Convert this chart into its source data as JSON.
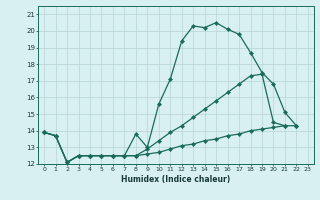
{
  "xlabel": "Humidex (Indice chaleur)",
  "x_values": [
    0,
    1,
    2,
    3,
    4,
    5,
    6,
    7,
    8,
    9,
    10,
    11,
    12,
    13,
    14,
    15,
    16,
    17,
    18,
    19,
    20,
    21,
    22,
    23
  ],
  "line1": [
    13.9,
    13.7,
    12.1,
    12.5,
    12.5,
    12.5,
    12.5,
    12.5,
    13.8,
    13.0,
    15.6,
    17.1,
    19.4,
    20.3,
    20.2,
    20.5,
    20.1,
    19.8,
    18.7,
    17.5,
    16.8,
    15.1,
    14.3,
    null
  ],
  "line2": [
    13.9,
    13.7,
    12.1,
    12.5,
    12.5,
    12.5,
    12.5,
    12.5,
    12.5,
    12.9,
    13.4,
    13.9,
    14.3,
    14.8,
    15.3,
    15.8,
    16.3,
    16.8,
    17.3,
    17.4,
    14.5,
    14.3,
    null,
    null
  ],
  "line3": [
    13.9,
    13.7,
    12.1,
    12.5,
    12.5,
    12.5,
    12.5,
    12.5,
    12.5,
    12.6,
    12.7,
    12.9,
    13.1,
    13.2,
    13.4,
    13.5,
    13.7,
    13.8,
    14.0,
    14.1,
    14.2,
    14.3,
    14.3,
    null
  ],
  "ylim": [
    12,
    21.5
  ],
  "xlim": [
    -0.5,
    23.5
  ],
  "yticks": [
    12,
    13,
    14,
    15,
    16,
    17,
    18,
    19,
    20,
    21
  ],
  "xticks": [
    0,
    1,
    2,
    3,
    4,
    5,
    6,
    7,
    8,
    9,
    10,
    11,
    12,
    13,
    14,
    15,
    16,
    17,
    18,
    19,
    20,
    21,
    22,
    23
  ],
  "line_color": "#1a6b5a",
  "bg_color": "#d8f0f0",
  "grid_color": "#b8d4d4",
  "marker_size": 2.2,
  "linewidth": 0.9
}
